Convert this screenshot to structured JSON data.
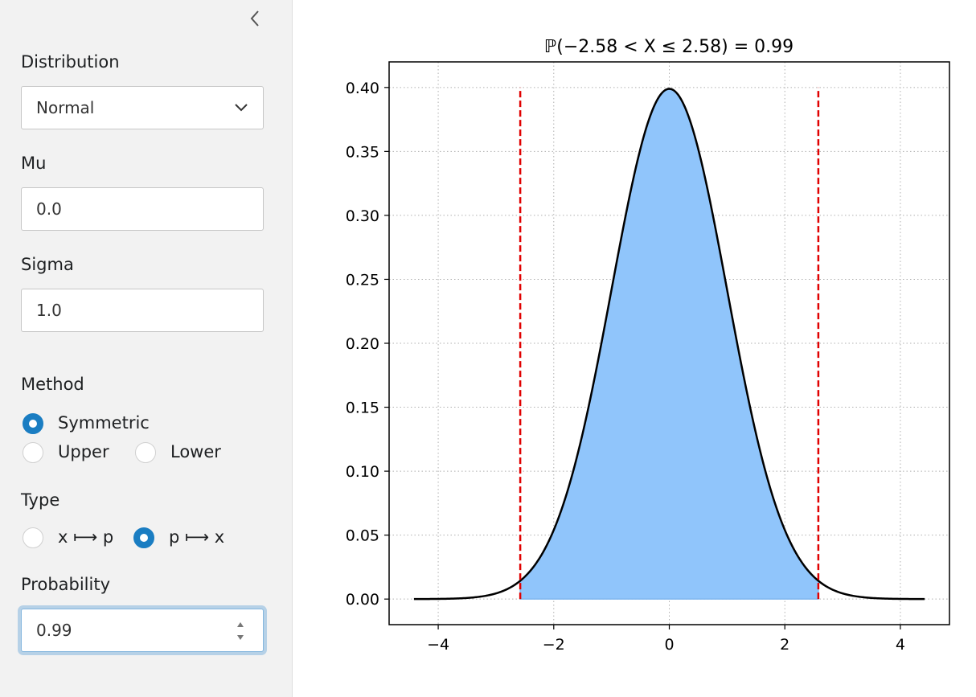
{
  "sidebar": {
    "distribution": {
      "label": "Distribution",
      "value": "Normal"
    },
    "mu": {
      "label": "Mu",
      "value": "0.0"
    },
    "sigma": {
      "label": "Sigma",
      "value": "1.0"
    },
    "method": {
      "label": "Method",
      "options": [
        "Symmetric",
        "Upper",
        "Lower"
      ],
      "selected": "Symmetric"
    },
    "type": {
      "label": "Type",
      "options": [
        "x ⟼ p",
        "p ⟼ x"
      ],
      "selected": "p ⟼ x"
    },
    "probability": {
      "label": "Probability",
      "value": "0.99"
    }
  },
  "colors": {
    "accent": "#1a7dc2",
    "fill": "#90c5fb",
    "boundary": "#e00000",
    "curve": "#000000"
  },
  "chart_data": {
    "type": "area",
    "title": "ℙ(−2.58 < X ≤ 2.58) = 0.99",
    "xlabel": "",
    "ylabel": "",
    "xlim": [
      -4.85,
      4.85
    ],
    "ylim": [
      -0.02,
      0.42
    ],
    "x_ticks": [
      -4,
      -2,
      0,
      2,
      4
    ],
    "x_tick_labels": [
      "−4",
      "−2",
      "0",
      "2",
      "4"
    ],
    "y_ticks": [
      0.0,
      0.05,
      0.1,
      0.15,
      0.2,
      0.25,
      0.3,
      0.35,
      0.4
    ],
    "y_tick_labels": [
      "0.00",
      "0.05",
      "0.10",
      "0.15",
      "0.20",
      "0.25",
      "0.30",
      "0.35",
      "0.40"
    ],
    "grid": true,
    "x_range": [
      -4.42,
      4.42
    ],
    "distribution": "normal",
    "mu": 0.0,
    "sigma": 1.0,
    "shaded_interval": [
      -2.58,
      2.58
    ],
    "boundaries": [
      -2.58,
      2.58
    ]
  }
}
